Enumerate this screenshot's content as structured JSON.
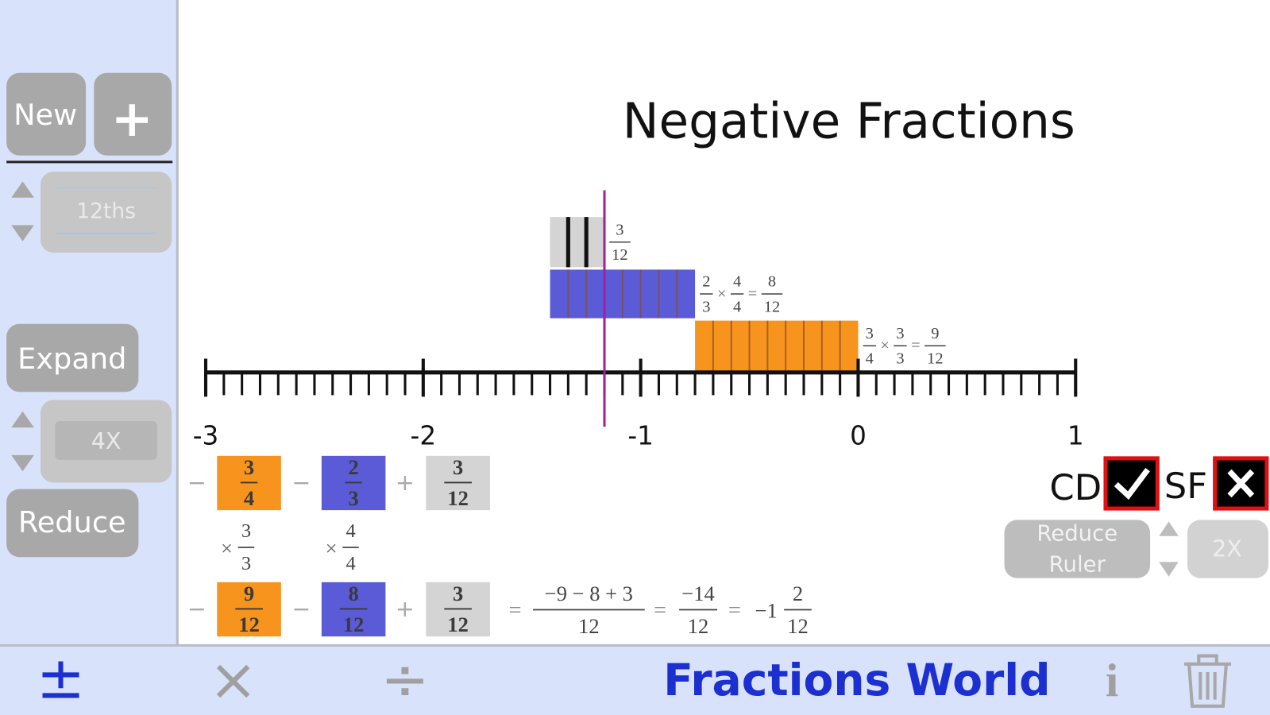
{
  "sidebar": {
    "new_button": "New",
    "add_button": "+",
    "denominator": "12ths",
    "expand_button": "Expand",
    "expand_factor": "4X",
    "reduce_button": "Reduce"
  },
  "title": "Negative Fractions",
  "number_line": {
    "ticks": [
      -3,
      -2,
      -1,
      0,
      1
    ],
    "minor_ticks_per_unit": 12,
    "marker": -1.1666667,
    "marker_color": "#a020a0"
  },
  "bars": [
    {
      "start": -1.4166667,
      "end": -1.1666667,
      "color": "#d4d4d4",
      "label": {
        "terms": [
          {
            "num": "3",
            "den": "12"
          }
        ],
        "ops": []
      }
    },
    {
      "start": -1.4166667,
      "end": -0.75,
      "color": "#5b5bd8",
      "label": {
        "terms": [
          {
            "num": "2",
            "den": "3"
          },
          {
            "num": "4",
            "den": "4"
          },
          {
            "num": "8",
            "den": "12"
          }
        ],
        "ops": [
          "×",
          "="
        ]
      }
    },
    {
      "start": -0.75,
      "end": 0,
      "color": "#f7941d",
      "label": {
        "terms": [
          {
            "num": "3",
            "den": "4"
          },
          {
            "num": "3",
            "den": "3"
          },
          {
            "num": "9",
            "den": "12"
          }
        ],
        "ops": [
          "×",
          "="
        ]
      }
    }
  ],
  "expression": {
    "row1": [
      {
        "sign": "−",
        "num": "3",
        "den": "4",
        "color": "#f7941d"
      },
      {
        "sign": "−",
        "num": "2",
        "den": "3",
        "color": "#5b5bd8"
      },
      {
        "sign": "+",
        "num": "3",
        "den": "12",
        "color": "#d4d4d4"
      }
    ],
    "multipliers": [
      {
        "op": "×",
        "num": "3",
        "den": "3"
      },
      {
        "op": "×",
        "num": "4",
        "den": "4"
      }
    ],
    "row2": [
      {
        "sign": "−",
        "num": "9",
        "den": "12",
        "color": "#f7941d"
      },
      {
        "sign": "−",
        "num": "8",
        "den": "12",
        "color": "#5b5bd8"
      },
      {
        "sign": "+",
        "num": "3",
        "den": "12",
        "color": "#d4d4d4"
      }
    ],
    "result": [
      {
        "op": "=",
        "num": "−9 − 8 + 3",
        "den": "12"
      },
      {
        "op": "=",
        "num": "−14",
        "den": "12"
      },
      {
        "op": "=",
        "whole": "−1",
        "num": "2",
        "den": "12"
      }
    ]
  },
  "controls": {
    "cd_label": "CD",
    "cd_checked": true,
    "sf_label": "SF",
    "sf_checked": false,
    "reduce_ruler": [
      "Reduce",
      "Ruler"
    ],
    "ruler_factor": "2X"
  },
  "toolbar": {
    "add_subtract": "±",
    "multiply": "×",
    "divide": "÷",
    "app_name": "Fractions World",
    "info": "i"
  }
}
